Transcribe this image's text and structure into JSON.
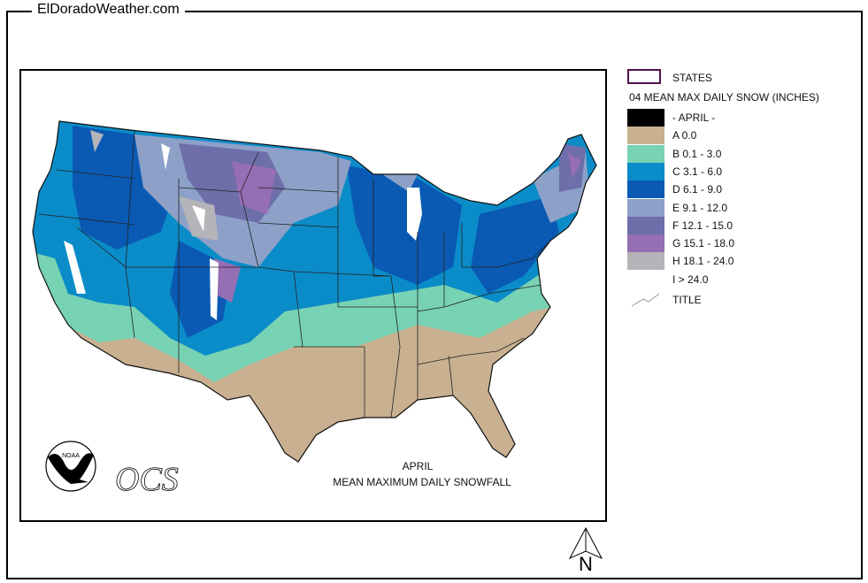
{
  "site_title": "ElDoradoWeather.com",
  "legend": {
    "states_label": "STATES",
    "heading": "04 MEAN MAX DAILY SNOW (INCHES)",
    "items": [
      {
        "label": "- APRIL -",
        "color": "#000000"
      },
      {
        "label": "A 0.0",
        "color": "#c8b090"
      },
      {
        "label": "B 0.1 - 3.0",
        "color": "#78d2b4"
      },
      {
        "label": "C 3.1 - 6.0",
        "color": "#0a8cc8"
      },
      {
        "label": "D 6.1 - 9.0",
        "color": "#0a5ab4"
      },
      {
        "label": "E 9.1 - 12.0",
        "color": "#8ca0c8"
      },
      {
        "label": "F 12.1 - 15.0",
        "color": "#6e6eaa"
      },
      {
        "label": "G 15.1 - 18.0",
        "color": "#966eb4"
      },
      {
        "label": "H 18.1 - 24.0",
        "color": "#b4b4b9"
      },
      {
        "label": "I > 24.0",
        "color": "#ffffff"
      }
    ],
    "title_label": "TITLE"
  },
  "map": {
    "caption_month": "APRIL",
    "caption_title": "MEAN MAXIMUM DAILY SNOWFALL",
    "logo_noaa": "NOAA",
    "logo_ocs": "OCS"
  },
  "north_label": "N"
}
